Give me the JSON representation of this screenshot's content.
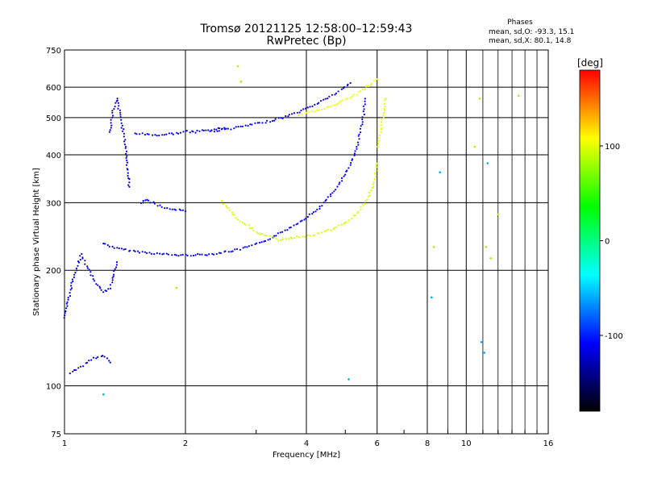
{
  "chart_data": {
    "type": "scatter",
    "title": "Tromsø 20121125 12:58:00–12:59:43",
    "subtitle": "RwPretec (Bp)",
    "xlabel": "Frequency [MHz]",
    "ylabel": "Stationary phase Virtual Height [km]",
    "x_scale": "log",
    "y_scale": "log",
    "xlim": [
      1,
      16
    ],
    "ylim": [
      75,
      750
    ],
    "x_ticks": [
      1,
      2,
      4,
      6,
      8,
      10,
      16
    ],
    "x_minor_ticks": [
      3,
      5,
      7,
      9,
      11,
      12,
      13,
      14,
      15
    ],
    "y_ticks": [
      75,
      100,
      200,
      300,
      400,
      500,
      600,
      750
    ],
    "grid": true,
    "phase_legend": {
      "title": "Phases",
      "line_o": "mean, sd,O:  -93.3, 15.1",
      "line_x": "mean, sd,X:  80.1, 14.8"
    },
    "colorbar": {
      "label": "[deg]",
      "range": [
        -180,
        180
      ],
      "ticks": [
        100,
        0,
        -100
      ],
      "colors": [
        "#ff0000",
        "#ffff00",
        "#00ff00",
        "#00ffff",
        "#0000ff",
        "#000000"
      ]
    },
    "series": [
      {
        "phase": -100,
        "x": [
          1.25,
          1.35,
          1.5,
          1.7,
          1.9,
          2.0,
          2.3,
          2.7,
          3.1,
          3.5,
          3.9,
          4.3,
          4.7,
          5.0,
          5.2,
          5.35,
          5.45,
          5.55,
          5.6
        ],
        "y": [
          235,
          228,
          224,
          221,
          219,
          219,
          220,
          226,
          236,
          252,
          270,
          290,
          322,
          355,
          385,
          420,
          460,
          510,
          560
        ]
      },
      {
        "phase": -100,
        "x": [
          2.3,
          2.6,
          2.9,
          3.2,
          3.5,
          3.8,
          4.1,
          4.4,
          4.7,
          4.95,
          5.15
        ],
        "y": [
          460,
          468,
          478,
          488,
          500,
          515,
          533,
          555,
          575,
          595,
          615
        ]
      },
      {
        "phase": -100,
        "x": [
          1.5,
          1.6,
          1.7,
          1.8,
          1.9,
          2.0,
          2.1,
          2.2,
          2.35,
          2.5
        ],
        "y": [
          455,
          452,
          450,
          452,
          455,
          460,
          458,
          462,
          465,
          470
        ]
      },
      {
        "phase": -100,
        "x": [
          1.55,
          1.6,
          1.7,
          1.8,
          1.9,
          2.0
        ],
        "y": [
          300,
          305,
          296,
          290,
          288,
          285
        ]
      },
      {
        "phase": -110,
        "x": [
          1.0,
          1.05,
          1.1,
          1.15,
          1.2,
          1.25,
          1.3,
          1.35
        ],
        "y": [
          150,
          190,
          220,
          200,
          185,
          175,
          180,
          210
        ]
      },
      {
        "phase": -110,
        "x": [
          1.3,
          1.32,
          1.35,
          1.38,
          1.42,
          1.45
        ],
        "y": [
          460,
          520,
          560,
          500,
          420,
          330
        ]
      },
      {
        "phase": -110,
        "x": [
          1.03,
          1.1,
          1.18,
          1.25,
          1.3
        ],
        "y": [
          108,
          112,
          118,
          120,
          115
        ]
      },
      {
        "phase": 85,
        "x": [
          2.45,
          2.7,
          3.0,
          3.4,
          3.8,
          4.2,
          4.6,
          5.0,
          5.4,
          5.7,
          5.9,
          6.0
        ],
        "y": [
          305,
          272,
          252,
          240,
          244,
          248,
          255,
          265,
          285,
          310,
          340,
          380
        ]
      },
      {
        "phase": 95,
        "x": [
          3.8,
          4.2,
          4.6,
          5.0,
          5.4,
          5.7,
          6.0
        ],
        "y": [
          505,
          520,
          535,
          555,
          580,
          605,
          630
        ]
      },
      {
        "phase": 90,
        "x": [
          6.0,
          6.1,
          6.2,
          6.3
        ],
        "y": [
          420,
          450,
          500,
          560
        ]
      },
      {
        "phase": 60,
        "x": [
          1.9,
          2.7,
          2.75,
          8.3,
          10.5,
          10.8,
          11.2,
          11.5,
          12.0,
          13.5
        ],
        "y": [
          180,
          680,
          620,
          230,
          420,
          560,
          230,
          215,
          280,
          570
        ]
      },
      {
        "phase": -60,
        "x": [
          1.25,
          5.1,
          8.2,
          8.6,
          10.9,
          11.1,
          11.3
        ],
        "y": [
          95,
          104,
          170,
          360,
          130,
          122,
          380
        ]
      }
    ]
  }
}
